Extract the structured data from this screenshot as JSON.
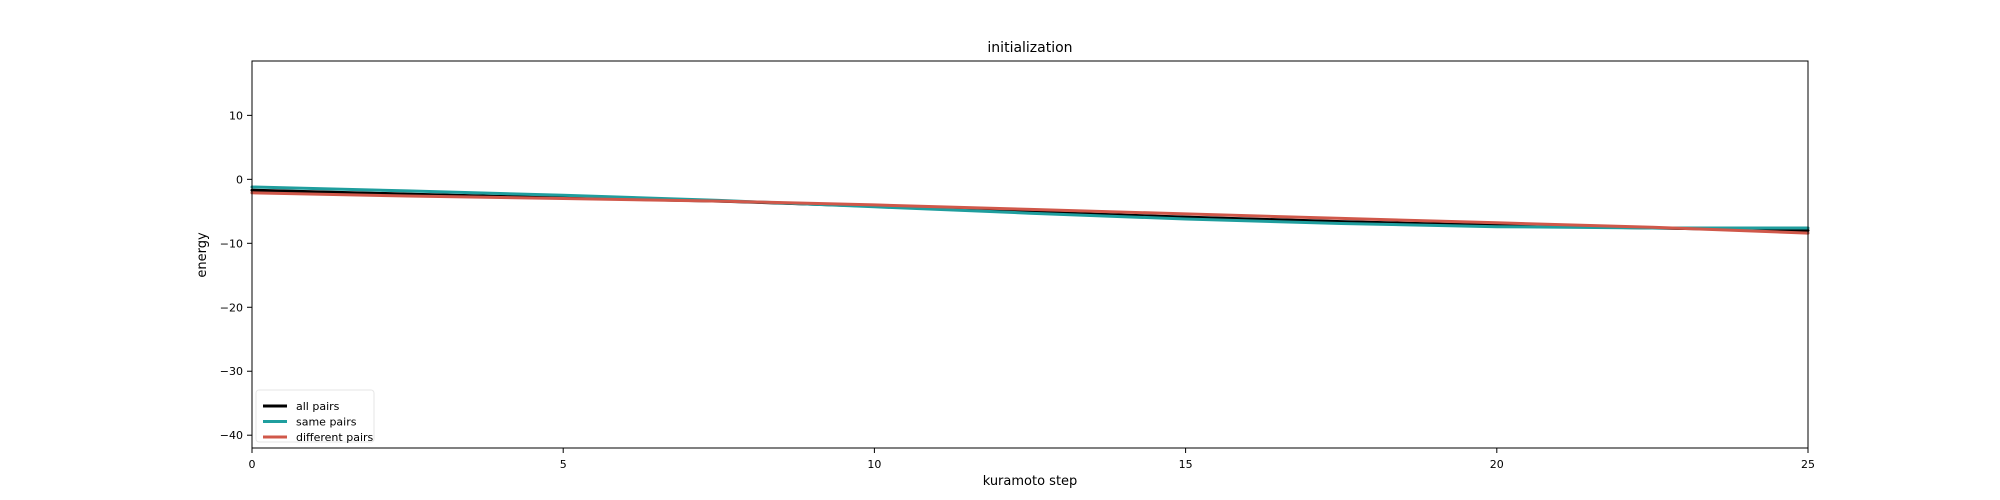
{
  "chart_data": {
    "type": "line",
    "title": "initialization",
    "xlabel": "kuramoto step",
    "ylabel": "energy",
    "xlim": [
      0,
      25
    ],
    "ylim": [
      -42,
      18.5
    ],
    "xticks": [
      0,
      5,
      10,
      15,
      20,
      25
    ],
    "yticks": [
      10,
      0,
      -10,
      -20,
      -30,
      -40
    ],
    "xtick_labels": [
      "0",
      "5",
      "10",
      "15",
      "20",
      "25"
    ],
    "ytick_labels": [
      "10",
      "0",
      "−10",
      "−20",
      "−30",
      "−40"
    ],
    "grid": false,
    "legend_position": "lower-left",
    "x": [
      0,
      2.5,
      5,
      7.5,
      10,
      12.5,
      15,
      17.5,
      20,
      22.5,
      25
    ],
    "series": [
      {
        "name": "all pairs",
        "color": "#000000",
        "values": [
          -1.7,
          -2.3,
          -2.9,
          -3.4,
          -4.2,
          -5.1,
          -5.9,
          -6.6,
          -7.2,
          -7.6,
          -8.0
        ]
      },
      {
        "name": "same pairs",
        "color": "#1f9e9e",
        "values": [
          -1.2,
          -1.8,
          -2.5,
          -3.3,
          -4.3,
          -5.3,
          -6.2,
          -6.9,
          -7.4,
          -7.6,
          -7.6
        ]
      },
      {
        "name": "different pairs",
        "color": "#d0584a",
        "values": [
          -2.1,
          -2.6,
          -3.0,
          -3.4,
          -4.0,
          -4.7,
          -5.4,
          -6.1,
          -6.8,
          -7.5,
          -8.4
        ]
      }
    ]
  }
}
